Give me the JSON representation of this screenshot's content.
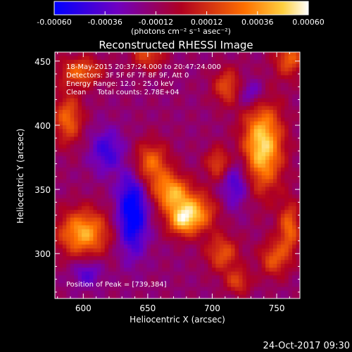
{
  "chart_data": {
    "type": "heatmap",
    "title": "Reconstructed RHESSI Image",
    "xlabel": "Heliocentric X (arcsec)",
    "ylabel": "Heliocentric Y (arcsec)",
    "xlim": [
      578,
      768
    ],
    "ylim": [
      265,
      457
    ],
    "x_ticks": [
      600,
      650,
      700,
      750
    ],
    "y_ticks": [
      300,
      350,
      400,
      450
    ],
    "colorbar": {
      "range": [
        -0.0006,
        0.0006
      ],
      "tick_values": [
        -0.0006,
        -0.00036,
        -0.00012,
        0.00012,
        0.00036,
        0.0006
      ],
      "tick_labels": [
        "-0.00060",
        "-0.00036",
        "-0.00012",
        "0.00012",
        "0.00036",
        "0.00060"
      ],
      "unit_label": "(photons cm⁻² s⁻¹ asec⁻²)"
    },
    "info_lines": [
      "18-May-2015 20:37:24.000 to 20:47:24.000",
      "Detectors: 3F 5F 6F 7F 8F 9F, Att 0",
      "Energy Range: 12.0 - 25.0 keV",
      "Clean     Total counts: 2.78E+04"
    ],
    "peak_label": "Position of Peak = [739,384]",
    "peak": [
      739,
      384
    ],
    "blobs": [
      {
        "x": 739,
        "y": 384,
        "sx": 11,
        "sy": 24,
        "amp": 0.00066
      },
      {
        "x": 600,
        "y": 316,
        "sx": 14,
        "sy": 13,
        "amp": 0.00055
      },
      {
        "x": 652,
        "y": 370,
        "sx": 10,
        "sy": 12,
        "amp": 0.00042
      },
      {
        "x": 668,
        "y": 348,
        "sx": 10,
        "sy": 10,
        "amp": 0.0005
      },
      {
        "x": 686,
        "y": 332,
        "sx": 12,
        "sy": 11,
        "amp": 0.0005
      },
      {
        "x": 676,
        "y": 325,
        "sx": 8,
        "sy": 8,
        "amp": 0.00035
      },
      {
        "x": 708,
        "y": 300,
        "sx": 9,
        "sy": 10,
        "amp": 0.00035
      },
      {
        "x": 588,
        "y": 405,
        "sx": 8,
        "sy": 14,
        "amp": 0.0004
      },
      {
        "x": 598,
        "y": 442,
        "sx": 12,
        "sy": 8,
        "amp": 0.00038
      },
      {
        "x": 650,
        "y": 455,
        "sx": 9,
        "sy": 8,
        "amp": 0.00032
      },
      {
        "x": 712,
        "y": 430,
        "sx": 8,
        "sy": 10,
        "amp": 0.00035
      },
      {
        "x": 760,
        "y": 452,
        "sx": 8,
        "sy": 10,
        "amp": 0.00038
      },
      {
        "x": 760,
        "y": 320,
        "sx": 6,
        "sy": 14,
        "amp": 0.0004
      },
      {
        "x": 748,
        "y": 296,
        "sx": 8,
        "sy": 10,
        "amp": 0.00035
      },
      {
        "x": 720,
        "y": 278,
        "sx": 7,
        "sy": 7,
        "amp": 0.0003
      },
      {
        "x": 705,
        "y": 370,
        "sx": 7,
        "sy": 9,
        "amp": 0.00035
      },
      {
        "x": 638,
        "y": 332,
        "sx": 8,
        "sy": 22,
        "amp": -0.00055
      },
      {
        "x": 618,
        "y": 380,
        "sx": 9,
        "sy": 12,
        "amp": -0.0003
      },
      {
        "x": 718,
        "y": 355,
        "sx": 8,
        "sy": 14,
        "amp": -0.0003
      },
      {
        "x": 730,
        "y": 425,
        "sx": 8,
        "sy": 8,
        "amp": -0.00028
      },
      {
        "x": 603,
        "y": 285,
        "sx": 8,
        "sy": 8,
        "amp": -0.00025
      }
    ]
  },
  "footer": {
    "timestamp": "24-Oct-2017 09:30"
  }
}
